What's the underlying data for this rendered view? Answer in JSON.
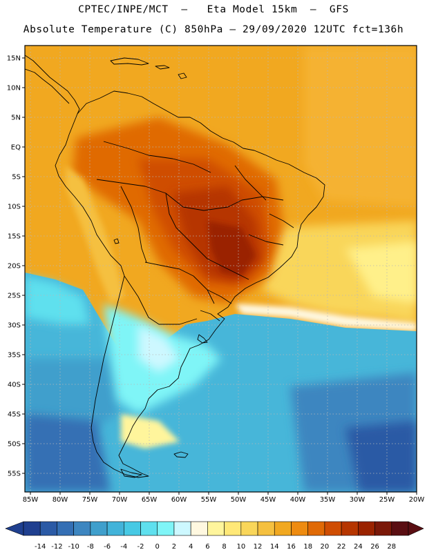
{
  "title_line1": "CPTEC/INPE/MCT  –   Eta Model 15km  –  GFS",
  "title_line2": "Absolute Temperature (C) 850hPa – 29/09/2020 12UTC fct=136h",
  "lat_labels": [
    "15N",
    "10N",
    "5N",
    "EQ",
    "5S",
    "10S",
    "15S",
    "20S",
    "25S",
    "30S",
    "35S",
    "40S",
    "45S",
    "50S",
    "55S"
  ],
  "lon_labels": [
    "85W",
    "80W",
    "75W",
    "70W",
    "65W",
    "60W",
    "55W",
    "50W",
    "45W",
    "40W",
    "35W",
    "30W",
    "25W",
    "20W"
  ],
  "legend": {
    "ticks": [
      "-14",
      "-12",
      "-10",
      "-8",
      "-6",
      "-4",
      "-2",
      "0",
      "2",
      "4",
      "6",
      "8",
      "10",
      "12",
      "14",
      "16",
      "18",
      "20",
      "22",
      "24",
      "26",
      "28"
    ],
    "colors": [
      "#1f3f8f",
      "#2b5aa5",
      "#346fb4",
      "#3d86c0",
      "#3f9fcc",
      "#42b3d9",
      "#47c9e4",
      "#5fe0ee",
      "#7ff5f7",
      "#cdf8ff",
      "#fff8e0",
      "#fff59c",
      "#ffe877",
      "#f9d65a",
      "#f5c03f",
      "#f1a820",
      "#ee8b10",
      "#e06a05",
      "#cf4d02",
      "#b63600",
      "#9a2300",
      "#7a1808",
      "#5a0e12"
    ]
  }
}
